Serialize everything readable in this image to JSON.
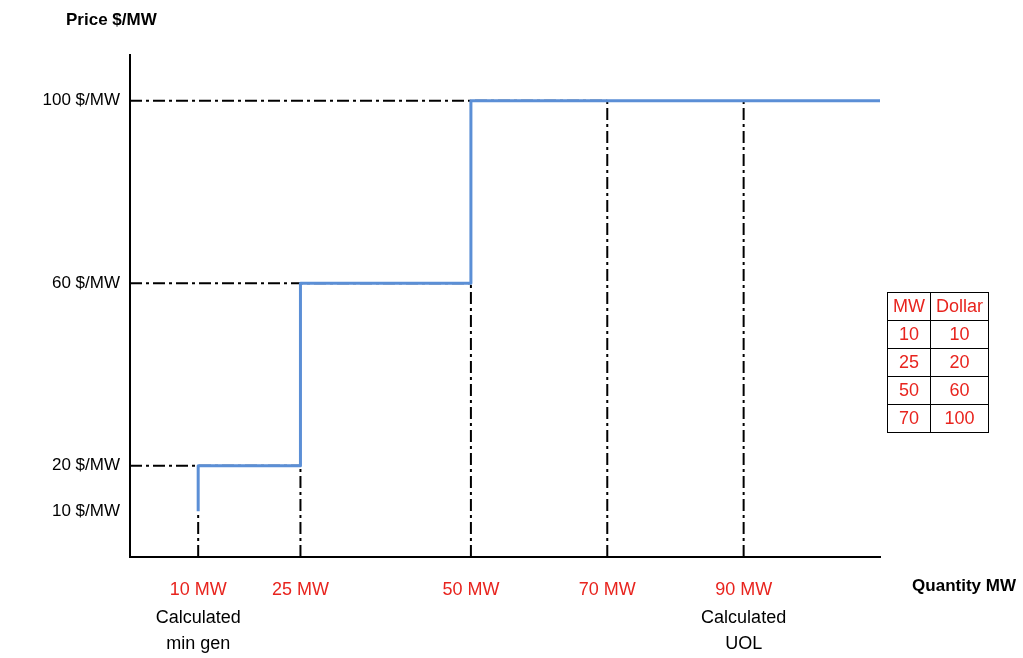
{
  "chart_data": {
    "type": "step",
    "xlabel": "Quantity MW",
    "ylabel": "Price $/MW",
    "x": [
      10,
      25,
      50,
      70,
      110
    ],
    "series": [
      {
        "color": "#5b8fd6",
        "values": [
          10,
          20,
          60,
          100,
          100
        ]
      }
    ],
    "xlim": [
      0,
      110
    ],
    "ylim": [
      0,
      110
    ],
    "xticks": [
      {
        "value": 10,
        "label": "10 MW"
      },
      {
        "value": 25,
        "label": "25 MW"
      },
      {
        "value": 50,
        "label": "50 MW"
      },
      {
        "value": 70,
        "label": "70 MW"
      },
      {
        "value": 90,
        "label": "90 MW"
      }
    ],
    "yticks": [
      {
        "value": 10,
        "label": "10 $/MW"
      },
      {
        "value": 20,
        "label": "20 $/MW"
      },
      {
        "value": 60,
        "label": "60 $/MW"
      },
      {
        "value": 100,
        "label": "100 $/MW"
      }
    ],
    "ref_lines": [
      {
        "axis": "y",
        "value": 100,
        "line_style": "dashdot"
      },
      {
        "axis": "y",
        "value": 60,
        "line_style": "dashdot"
      },
      {
        "axis": "y",
        "value": 20,
        "line_style": "dashdot"
      },
      {
        "axis": "x",
        "value": 10,
        "line_style": "dashdot"
      },
      {
        "axis": "x",
        "value": 25,
        "line_style": "dashdot"
      },
      {
        "axis": "x",
        "value": 50,
        "line_style": "dashdot"
      },
      {
        "axis": "x",
        "value": 70,
        "line_style": "dashdot"
      },
      {
        "axis": "x",
        "value": 90,
        "line_style": "dashdot"
      }
    ],
    "annotations": [
      {
        "text": "Calculated min gen",
        "x": 10,
        "y": 0
      },
      {
        "text": "Calculated UOL",
        "x": 90,
        "y": 0
      },
      "MW",
      "Dollar",
      "10",
      "10",
      "25",
      "20",
      "50",
      "60",
      "70",
      "100"
    ],
    "grid": false,
    "legend": false
  }
}
